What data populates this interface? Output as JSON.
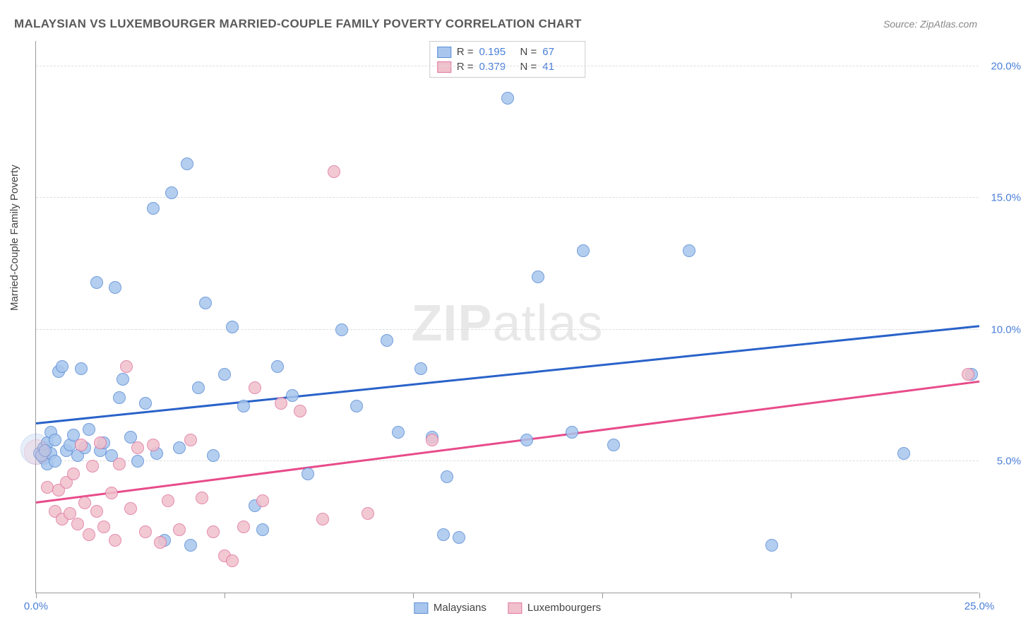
{
  "title": "MALAYSIAN VS LUXEMBOURGER MARRIED-COUPLE FAMILY POVERTY CORRELATION CHART",
  "source": "Source: ZipAtlas.com",
  "ylabel": "Married-Couple Family Poverty",
  "watermark_zip": "ZIP",
  "watermark_atlas": "atlas",
  "chart": {
    "type": "scatter",
    "xlim": [
      0,
      25
    ],
    "ylim": [
      0,
      21
    ],
    "xticks": [
      0,
      5,
      10,
      15,
      20,
      25
    ],
    "yticks": [
      5,
      10,
      15,
      20
    ],
    "xtick_labels": {
      "0": "0.0%",
      "25": "25.0%"
    },
    "ytick_labels": {
      "5": "5.0%",
      "10": "10.0%",
      "15": "15.0%",
      "20": "20.0%"
    },
    "background_color": "#ffffff",
    "grid_color": "#dddddd",
    "axis_color": "#999999",
    "tick_label_color": "#4a7fd8",
    "marker_radius": 9,
    "marker_stroke_width": 1.2,
    "marker_fill_opacity": 0.28,
    "series": [
      {
        "name": "Malaysians",
        "label": "Malaysians",
        "color_fill": "#a8c6ed",
        "color_stroke": "#5b8dd6",
        "R": "0.195",
        "N": "67",
        "trend": {
          "x1": 0,
          "y1": 6.4,
          "x2": 25,
          "y2": 10.1,
          "color": "#2962c9",
          "width": 2.5
        },
        "points": [
          [
            0.1,
            5.3
          ],
          [
            0.2,
            5.5
          ],
          [
            0.2,
            5.1
          ],
          [
            0.3,
            5.7
          ],
          [
            0.3,
            4.9
          ],
          [
            0.4,
            6.1
          ],
          [
            0.4,
            5.3
          ],
          [
            0.5,
            5.8
          ],
          [
            0.5,
            5.0
          ],
          [
            0.6,
            8.4
          ],
          [
            0.7,
            8.6
          ],
          [
            0.8,
            5.4
          ],
          [
            0.9,
            5.6
          ],
          [
            1.0,
            6.0
          ],
          [
            1.1,
            5.2
          ],
          [
            1.2,
            8.5
          ],
          [
            1.3,
            5.5
          ],
          [
            1.4,
            6.2
          ],
          [
            1.6,
            11.8
          ],
          [
            1.7,
            5.4
          ],
          [
            1.8,
            5.7
          ],
          [
            2.0,
            5.2
          ],
          [
            2.1,
            11.6
          ],
          [
            2.2,
            7.4
          ],
          [
            2.3,
            8.1
          ],
          [
            2.5,
            5.9
          ],
          [
            2.7,
            5.0
          ],
          [
            2.9,
            7.2
          ],
          [
            3.1,
            14.6
          ],
          [
            3.2,
            5.3
          ],
          [
            3.4,
            2.0
          ],
          [
            3.6,
            15.2
          ],
          [
            3.8,
            5.5
          ],
          [
            4.0,
            16.3
          ],
          [
            4.1,
            1.8
          ],
          [
            4.3,
            7.8
          ],
          [
            4.5,
            11.0
          ],
          [
            4.7,
            5.2
          ],
          [
            5.0,
            8.3
          ],
          [
            5.2,
            10.1
          ],
          [
            5.5,
            7.1
          ],
          [
            5.8,
            3.3
          ],
          [
            6.0,
            2.4
          ],
          [
            6.4,
            8.6
          ],
          [
            6.8,
            7.5
          ],
          [
            7.2,
            4.5
          ],
          [
            8.1,
            10.0
          ],
          [
            8.5,
            7.1
          ],
          [
            9.3,
            9.6
          ],
          [
            9.6,
            6.1
          ],
          [
            10.2,
            8.5
          ],
          [
            10.5,
            5.9
          ],
          [
            10.8,
            2.2
          ],
          [
            10.9,
            4.4
          ],
          [
            11.2,
            2.1
          ],
          [
            12.5,
            18.8
          ],
          [
            13.0,
            5.8
          ],
          [
            13.3,
            12.0
          ],
          [
            14.2,
            6.1
          ],
          [
            14.5,
            13.0
          ],
          [
            15.3,
            5.6
          ],
          [
            17.3,
            13.0
          ],
          [
            19.5,
            1.8
          ],
          [
            23.0,
            5.3
          ],
          [
            24.8,
            8.3
          ],
          [
            0.15,
            5.2
          ],
          [
            0.25,
            5.4
          ]
        ],
        "large_point": {
          "x": 0.0,
          "y": 5.45,
          "r": 22
        }
      },
      {
        "name": "Luxembourgers",
        "label": "Luxembourgers",
        "color_fill": "#f0c0cc",
        "color_stroke": "#e077a0",
        "R": "0.379",
        "N": "41",
        "trend": {
          "x1": 0,
          "y1": 3.4,
          "x2": 25,
          "y2": 8.0,
          "color": "#e84b8a",
          "width": 2.5
        },
        "points": [
          [
            0.3,
            4.0
          ],
          [
            0.5,
            3.1
          ],
          [
            0.6,
            3.9
          ],
          [
            0.7,
            2.8
          ],
          [
            0.8,
            4.2
          ],
          [
            0.9,
            3.0
          ],
          [
            1.0,
            4.5
          ],
          [
            1.1,
            2.6
          ],
          [
            1.2,
            5.6
          ],
          [
            1.3,
            3.4
          ],
          [
            1.4,
            2.2
          ],
          [
            1.5,
            4.8
          ],
          [
            1.6,
            3.1
          ],
          [
            1.7,
            5.7
          ],
          [
            1.8,
            2.5
          ],
          [
            2.0,
            3.8
          ],
          [
            2.1,
            2.0
          ],
          [
            2.2,
            4.9
          ],
          [
            2.4,
            8.6
          ],
          [
            2.5,
            3.2
          ],
          [
            2.7,
            5.5
          ],
          [
            2.9,
            2.3
          ],
          [
            3.1,
            5.6
          ],
          [
            3.3,
            1.9
          ],
          [
            3.5,
            3.5
          ],
          [
            3.8,
            2.4
          ],
          [
            4.1,
            5.8
          ],
          [
            4.4,
            3.6
          ],
          [
            4.7,
            2.3
          ],
          [
            5.0,
            1.4
          ],
          [
            5.2,
            1.2
          ],
          [
            5.5,
            2.5
          ],
          [
            5.8,
            7.8
          ],
          [
            6.0,
            3.5
          ],
          [
            6.5,
            7.2
          ],
          [
            7.0,
            6.9
          ],
          [
            7.6,
            2.8
          ],
          [
            7.9,
            16.0
          ],
          [
            8.8,
            3.0
          ],
          [
            10.5,
            5.8
          ],
          [
            24.7,
            8.3
          ]
        ],
        "large_point": {
          "x": 0.02,
          "y": 5.35,
          "r": 18
        }
      }
    ]
  },
  "legend_top": {
    "r_label": "R  =",
    "n_label": "N  ="
  }
}
